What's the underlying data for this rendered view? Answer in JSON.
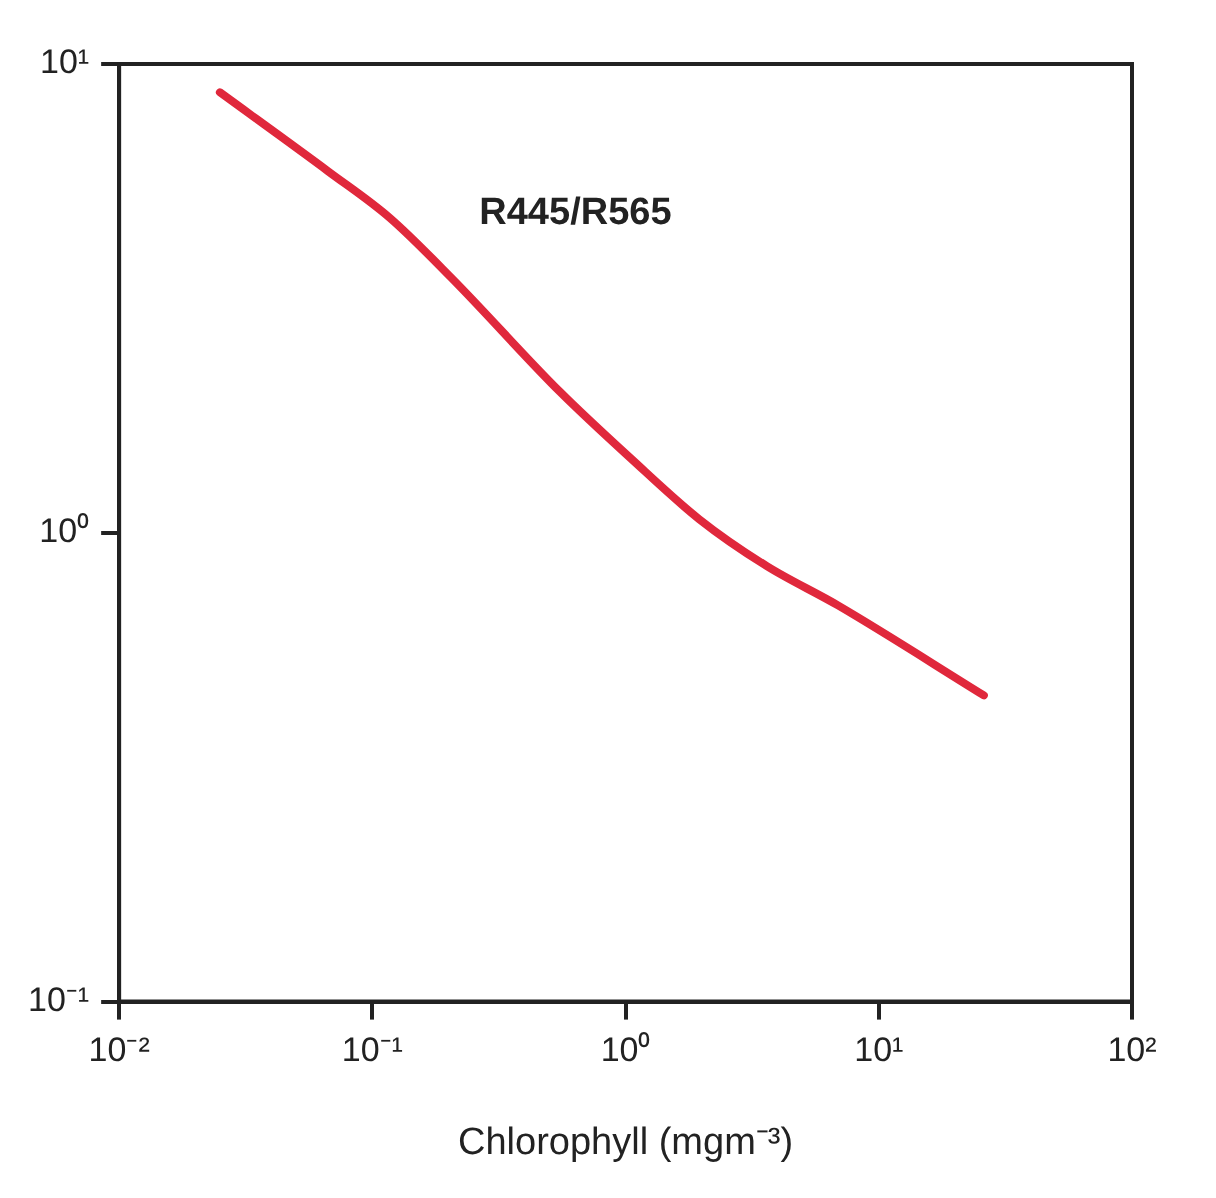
{
  "chart_data": {
    "type": "line",
    "xlabel": "Chlorophyll (mgm⁻³)",
    "log": "xy",
    "grid": false,
    "legend": false,
    "marker": "none",
    "line_style": "solid",
    "xlim": [
      0.01,
      100
    ],
    "ylim": [
      0.1,
      10
    ],
    "xticks": [
      {
        "value": 0.01,
        "label": "10⁻²"
      },
      {
        "value": 0.1,
        "label": "10⁻¹"
      },
      {
        "value": 1,
        "label": "10⁰"
      },
      {
        "value": 10,
        "label": "10¹"
      },
      {
        "value": 100,
        "label": "10²"
      }
    ],
    "yticks": [
      {
        "value": 0.1,
        "label": "10⁻¹"
      },
      {
        "value": 1,
        "label": "10⁰"
      },
      {
        "value": 10,
        "label": "10¹"
      }
    ],
    "series": [
      {
        "name": "R445/R565",
        "color": "#e0283c",
        "x": [
          0.025,
          0.067,
          0.117,
          0.205,
          0.55,
          1.05,
          1.95,
          3.6,
          6.9,
          26
        ],
        "values": [
          8.7,
          5.9,
          4.7,
          3.5,
          2.0,
          1.44,
          1.07,
          0.85,
          0.7,
          0.45
        ]
      }
    ]
  }
}
